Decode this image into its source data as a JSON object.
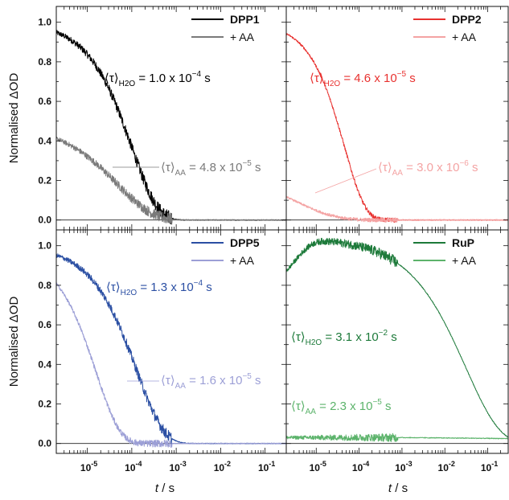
{
  "figure": {
    "xlabel_italic": "t",
    "xlabel_unit": " / s"
  },
  "chart_data": [
    {
      "type": "line",
      "panel": "top-left",
      "xscale": "log",
      "xlim": [
        2e-06,
        0.3
      ],
      "ylim": [
        -0.05,
        1.08
      ],
      "ylabel": "Normalised ΔOD",
      "yticks": [
        "0.0",
        "0.2",
        "0.4",
        "0.6",
        "0.8",
        "1.0"
      ],
      "xticks": [],
      "legend_position": "top-right",
      "series": [
        {
          "name": "DPP1",
          "color": "#000000",
          "bold": true,
          "kind": "decay",
          "start": 1.0,
          "tau": 0.0001,
          "beta": 0.75,
          "noise_end": 0.0008,
          "noise_amp": 0.035
        },
        {
          "name": "+ AA",
          "color": "#7a7a7a",
          "bold": false,
          "kind": "decay",
          "start": 0.49,
          "tau": 4.8e-05,
          "beta": 0.55,
          "noise_end": 0.0008,
          "noise_amp": 0.03
        }
      ],
      "annotations": [
        {
          "sym": "⟨τ⟩",
          "sub": "H2O",
          "text": " = 1.0 x 10",
          "sup": "−4",
          "unit": " s",
          "color": "#000000"
        },
        {
          "sym": "⟨τ⟩",
          "sub": "AA",
          "text": " = 4.8 x 10",
          "sup": "−5",
          "unit": " s",
          "color": "#7a7a7a"
        }
      ]
    },
    {
      "type": "line",
      "panel": "top-right",
      "xscale": "log",
      "xlim": [
        2e-06,
        0.3
      ],
      "ylim": [
        -0.05,
        1.08
      ],
      "ylabel": "",
      "yticks": [],
      "xticks": [],
      "legend_position": "top-right",
      "series": [
        {
          "name": "DPP2",
          "color": "#e8312f",
          "bold": true,
          "kind": "decay",
          "start": 1.0,
          "tau": 4.6e-05,
          "beta": 0.9,
          "noise_end": 0.0008,
          "noise_amp": 0.012
        },
        {
          "name": "+ AA",
          "color": "#f4a3a3",
          "bold": false,
          "kind": "decay",
          "start": 0.27,
          "tau": 3e-06,
          "beta": 0.45,
          "noise_end": 0.0008,
          "noise_amp": 0.012
        }
      ],
      "annotations": [
        {
          "sym": "⟨τ⟩",
          "sub": "H2O",
          "text": " = 4.6 x 10",
          "sup": "−5",
          "unit": " s",
          "color": "#e8312f"
        },
        {
          "sym": "⟨τ⟩",
          "sub": "AA",
          "text": " = 3.0 x 10",
          "sup": "−6",
          "unit": " s",
          "color": "#f4a3a3"
        }
      ]
    },
    {
      "type": "line",
      "panel": "bottom-left",
      "xscale": "log",
      "xlim": [
        2e-06,
        0.3
      ],
      "ylim": [
        -0.05,
        1.08
      ],
      "ylabel": "Normalised ΔOD",
      "yticks": [
        "0.0",
        "0.2",
        "0.4",
        "0.6",
        "0.8",
        "1.0"
      ],
      "xticks": [
        "10",
        "10",
        "10",
        "10",
        "10"
      ],
      "xtick_exps": [
        "-5",
        "-4",
        "-3",
        "-2",
        "-1"
      ],
      "legend_position": "top-right",
      "series": [
        {
          "name": "DPP5",
          "color": "#2b4fa3",
          "bold": true,
          "kind": "decay",
          "start": 1.0,
          "tau": 0.00013,
          "beta": 0.72,
          "noise_end": 0.0008,
          "noise_amp": 0.03
        },
        {
          "name": "+ AA",
          "color": "#9c9fd6",
          "bold": false,
          "kind": "decay",
          "start": 0.97,
          "tau": 1.6e-05,
          "beta": 0.82,
          "noise_end": 0.0008,
          "noise_amp": 0.02
        }
      ],
      "annotations": [
        {
          "sym": "⟨τ⟩",
          "sub": "H2O",
          "text": " = 1.3 x 10",
          "sup": "−4",
          "unit": " s",
          "color": "#2b4fa3"
        },
        {
          "sym": "⟨τ⟩",
          "sub": "AA",
          "text": " = 1.6 x 10",
          "sup": "−5",
          "unit": " s",
          "color": "#9c9fd6"
        }
      ]
    },
    {
      "type": "line",
      "panel": "bottom-right",
      "xscale": "log",
      "xlim": [
        2e-06,
        0.3
      ],
      "ylim": [
        -0.05,
        1.08
      ],
      "ylabel": "",
      "yticks": [],
      "xticks": [
        "10",
        "10",
        "10",
        "10",
        "10"
      ],
      "xtick_exps": [
        "-5",
        "-4",
        "-3",
        "-2",
        "-1"
      ],
      "legend_position": "top-right",
      "series": [
        {
          "name": "RuP",
          "color": "#1d7a3a",
          "bold": true,
          "kind": "rise-decay",
          "start": 0.72,
          "plateau": 1.04,
          "tau": 0.031,
          "beta": 0.55,
          "noise_end": 0.0008,
          "noise_amp": 0.03
        },
        {
          "name": "+ AA",
          "color": "#5cb36b",
          "bold": false,
          "kind": "flat",
          "start": 0.03,
          "end": 0.025,
          "noise_end": 0.0008,
          "noise_amp": 0.022
        }
      ],
      "annotations": [
        {
          "sym": "⟨τ⟩",
          "sub": "H2O",
          "text": " = 3.1 x 10",
          "sup": "−2",
          "unit": " s",
          "color": "#1d7a3a"
        },
        {
          "sym": "⟨τ⟩",
          "sub": "AA",
          "text": " = 2.3 x 10",
          "sup": "−5",
          "unit": " s",
          "color": "#5cb36b"
        }
      ]
    }
  ]
}
